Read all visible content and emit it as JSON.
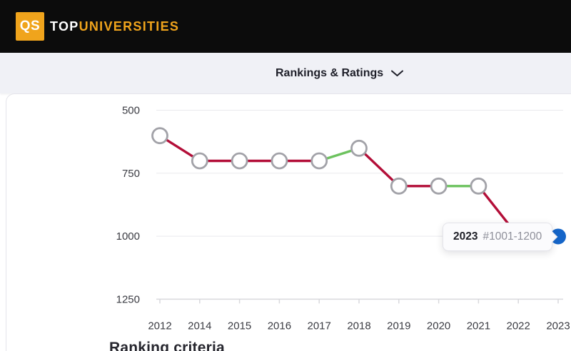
{
  "header": {
    "logo_monogram": "QS",
    "wordmark_top": "TOP",
    "wordmark_rest": "UNIVERSITIES",
    "brand_orange": "#f0a41c",
    "background": "#0c0c0c"
  },
  "subnav": {
    "label": "Rankings & Ratings",
    "icon": "chevron-down",
    "background": "#f0f1f6"
  },
  "sections": {
    "heading": "Ranking criteria"
  },
  "chart_data": {
    "type": "line",
    "title": "",
    "x": [
      "2012",
      "2014",
      "2015",
      "2016",
      "2017",
      "2018",
      "2019",
      "2020",
      "2021",
      "2022",
      "2023"
    ],
    "y_ticks": [
      500,
      750,
      1000,
      1250
    ],
    "y_axis_inverted": true,
    "series": [
      {
        "name": "university-rank-position",
        "values": [
          601,
          701,
          701,
          701,
          701,
          651,
          801,
          801,
          801,
          1001,
          1001
        ]
      }
    ],
    "segment_trend": [
      "down",
      "down",
      "down",
      "down",
      "up",
      "down",
      "down",
      "up",
      "down",
      "down"
    ],
    "highlight_index": 10,
    "tooltip": {
      "year": "2023",
      "rank": "#1001-1200"
    },
    "legend": "none",
    "grid": "horizontal-only",
    "colors": {
      "down": "#b30e38",
      "up": "#6cc25e",
      "marker_fill": "#ffffff",
      "marker_stroke": "#a2a2a8",
      "highlight": "#1565c8",
      "grid": "#e9e9ed",
      "axis": "#d9d9dd",
      "tick_text": "#3a3b42"
    }
  }
}
